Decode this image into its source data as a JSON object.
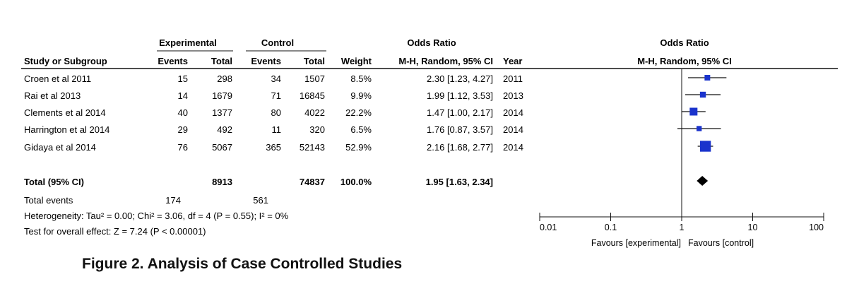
{
  "caption": "Figure 2. Analysis of Case Controlled Studies",
  "header": {
    "group_experimental": "Experimental",
    "group_control": "Control",
    "odds_ratio_title": "Odds Ratio",
    "plot_title": "Odds Ratio",
    "plot_method": "M-H, Random, 95% CI",
    "columns": {
      "study": "Study or Subgroup",
      "exp_events": "Events",
      "exp_total": "Total",
      "ctl_events": "Events",
      "ctl_total": "Total",
      "weight": "Weight",
      "or": "M-H, Random, 95% CI",
      "year": "Year"
    }
  },
  "studies": [
    {
      "name": "Croen et al 2011",
      "exp_events": "15",
      "exp_total": "298",
      "ctl_events": "34",
      "ctl_total": "1507",
      "weight": "8.5%",
      "or_text": "2.30 [1.23, 4.27]",
      "year": "2011"
    },
    {
      "name": "Rai et al 2013",
      "exp_events": "14",
      "exp_total": "1679",
      "ctl_events": "71",
      "ctl_total": "16845",
      "weight": "9.9%",
      "or_text": "1.99 [1.12, 3.53]",
      "year": "2013"
    },
    {
      "name": "Clements et al 2014",
      "exp_events": "40",
      "exp_total": "1377",
      "ctl_events": "80",
      "ctl_total": "4022",
      "weight": "22.2%",
      "or_text": "1.47 [1.00, 2.17]",
      "year": "2014"
    },
    {
      "name": "Harrington et al 2014",
      "exp_events": "29",
      "exp_total": "492",
      "ctl_events": "11",
      "ctl_total": "320",
      "weight": "6.5%",
      "or_text": "1.76 [0.87, 3.57]",
      "year": "2014"
    },
    {
      "name": "Gidaya et al 2014",
      "exp_events": "76",
      "exp_total": "5067",
      "ctl_events": "365",
      "ctl_total": "52143",
      "weight": "52.9%",
      "or_text": "2.16 [1.68, 2.77]",
      "year": "2014"
    }
  ],
  "total": {
    "label": "Total (95% CI)",
    "exp_total": "8913",
    "ctl_total": "74837",
    "weight": "100.0%",
    "or_text": "1.95 [1.63, 2.34]"
  },
  "total_events": {
    "label": "Total events",
    "exp": "174",
    "ctl": "561"
  },
  "heterogeneity": "Heterogeneity: Tau² = 0.00; Chi² = 3.06, df = 4 (P = 0.55); I² = 0%",
  "overall_effect": "Test for overall effect: Z = 7.24 (P < 0.00001)",
  "axis": {
    "scale": "log",
    "range": [
      0.01,
      100
    ],
    "ticks": [
      "0.01",
      "0.1",
      "1",
      "10",
      "100"
    ],
    "tick_values": [
      0.01,
      0.1,
      1,
      10,
      100
    ],
    "null_line": 1,
    "favours_left": "Favours [experimental]",
    "favours_right": "Favours [control]"
  },
  "colors": {
    "study_marker": "#1a33cc",
    "summary_diamond": "#000000",
    "text": "#111111"
  },
  "chart_data": {
    "type": "forest",
    "scale": "log",
    "xlim": [
      0.01,
      100
    ],
    "studies": [
      {
        "name": "Croen et al 2011",
        "or": 2.3,
        "lo": 1.23,
        "hi": 4.27,
        "weight": 8.5
      },
      {
        "name": "Rai et al 2013",
        "or": 1.99,
        "lo": 1.12,
        "hi": 3.53,
        "weight": 9.9
      },
      {
        "name": "Clements et al 2014",
        "or": 1.47,
        "lo": 1.0,
        "hi": 2.17,
        "weight": 22.2
      },
      {
        "name": "Harrington et al 2014",
        "or": 1.76,
        "lo": 0.87,
        "hi": 3.57,
        "weight": 6.5
      },
      {
        "name": "Gidaya et al 2014",
        "or": 2.16,
        "lo": 1.68,
        "hi": 2.77,
        "weight": 52.9
      }
    ],
    "summary": {
      "or": 1.95,
      "lo": 1.63,
      "hi": 2.34
    }
  }
}
